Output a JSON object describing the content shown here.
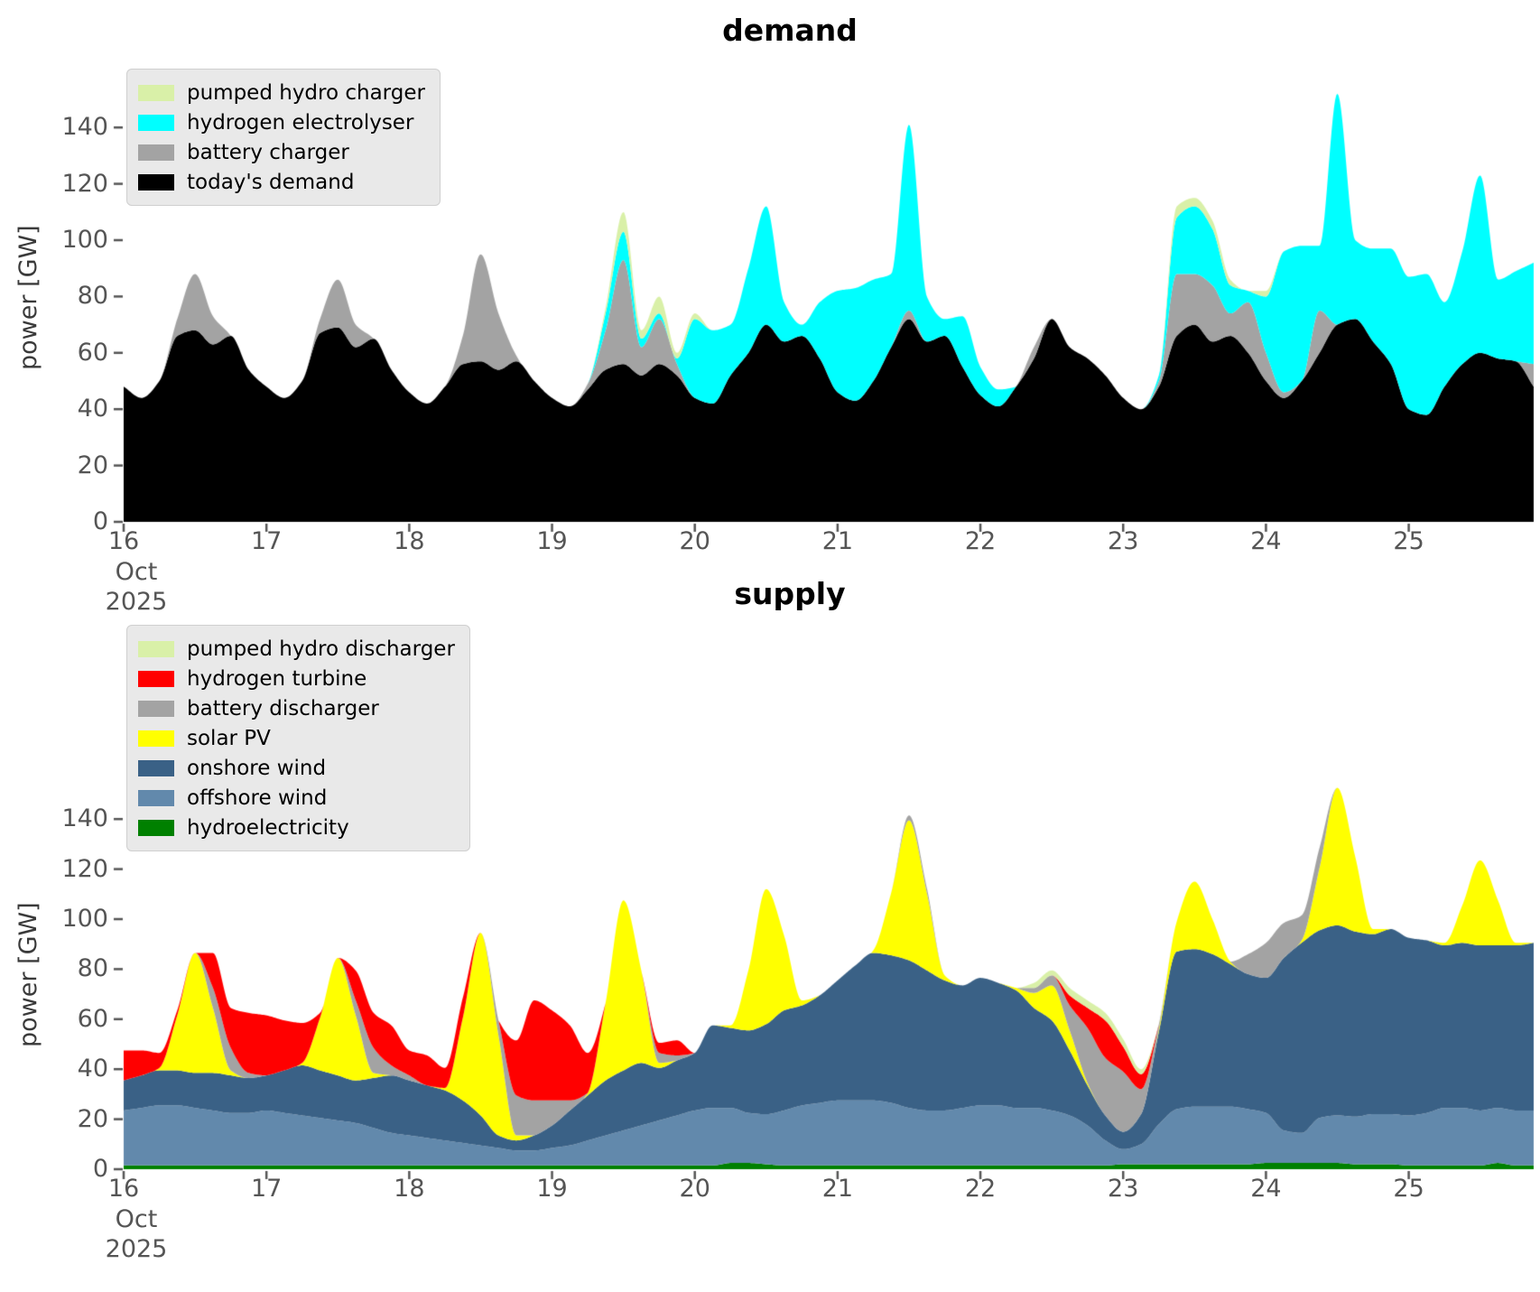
{
  "figure": {
    "month_year_sublabel": [
      "Oct",
      "2025"
    ]
  },
  "chart_data": [
    {
      "type": "area",
      "title": "demand",
      "ylabel": "power [GW]",
      "x_start": 16,
      "x_step": 0.125,
      "x_ticks": [
        16,
        17,
        18,
        19,
        20,
        21,
        22,
        23,
        24,
        25
      ],
      "x_tick_sublabels": [
        "Oct",
        "2025"
      ],
      "y_ticks": [
        0,
        20,
        40,
        60,
        80,
        100,
        120,
        140
      ],
      "ylim": [
        0,
        160
      ],
      "legend_position": "upper-left",
      "legend_note": "legend lists series top-of-stack first",
      "series": [
        {
          "name": "today's demand",
          "color": "#000000",
          "values": [
            48,
            44,
            50,
            66,
            68,
            63,
            66,
            54,
            48,
            44,
            50,
            67,
            69,
            62,
            65,
            54,
            46,
            42,
            48,
            56,
            57,
            54,
            57,
            50,
            44,
            41,
            47,
            54,
            56,
            52,
            56,
            52,
            44,
            42,
            52,
            60,
            70,
            64,
            66,
            58,
            46,
            43,
            50,
            62,
            72,
            64,
            66,
            55,
            45,
            41,
            48,
            58,
            72,
            62,
            58,
            52,
            44,
            40,
            48,
            66,
            70,
            64,
            66,
            60,
            50,
            44,
            50,
            60,
            70,
            72,
            64,
            56,
            40,
            38,
            48,
            56,
            60,
            58,
            57,
            48
          ]
        },
        {
          "name": "battery charger",
          "color": "#a3a3a3",
          "values": [
            0,
            0,
            0,
            6,
            20,
            10,
            0,
            0,
            0,
            0,
            0,
            5,
            17,
            8,
            0,
            0,
            0,
            0,
            0,
            10,
            38,
            20,
            2,
            0,
            0,
            0,
            2,
            14,
            37,
            10,
            16,
            4,
            0,
            0,
            0,
            0,
            0,
            0,
            0,
            0,
            0,
            0,
            0,
            0,
            3,
            0,
            0,
            0,
            0,
            0,
            0,
            4,
            0,
            0,
            0,
            0,
            0,
            0,
            2,
            22,
            18,
            20,
            8,
            18,
            10,
            2,
            0,
            15,
            0,
            0,
            0,
            0,
            0,
            0,
            0,
            0,
            0,
            0,
            0,
            8
          ]
        },
        {
          "name": "hydrogen electrolyser",
          "color": "#00ffff",
          "values": [
            0,
            0,
            0,
            0,
            0,
            0,
            0,
            0,
            0,
            0,
            0,
            0,
            0,
            0,
            0,
            0,
            0,
            0,
            0,
            0,
            0,
            0,
            0,
            0,
            0,
            0,
            0,
            6,
            10,
            3,
            2,
            2,
            28,
            26,
            18,
            30,
            42,
            14,
            4,
            20,
            36,
            40,
            36,
            26,
            66,
            16,
            6,
            18,
            10,
            6,
            0,
            0,
            0,
            0,
            0,
            0,
            0,
            0,
            2,
            20,
            24,
            20,
            10,
            4,
            20,
            50,
            48,
            23,
            82,
            28,
            33,
            41,
            47,
            50,
            30,
            40,
            63,
            28,
            32,
            36
          ]
        },
        {
          "name": "pumped hydro charger",
          "color": "#d9f0a8",
          "values": [
            0,
            0,
            0,
            0,
            0,
            0,
            0,
            0,
            0,
            0,
            0,
            0,
            0,
            0,
            0,
            0,
            0,
            0,
            0,
            0,
            0,
            0,
            0,
            0,
            0,
            0,
            0,
            2,
            7,
            3,
            6,
            2,
            2,
            0,
            0,
            0,
            0,
            0,
            0,
            0,
            0,
            0,
            0,
            0,
            0,
            0,
            0,
            0,
            0,
            0,
            0,
            0,
            0,
            0,
            0,
            0,
            0,
            0,
            0,
            4,
            3,
            3,
            2,
            0,
            2,
            0,
            0,
            0,
            0,
            0,
            0,
            0,
            0,
            0,
            0,
            0,
            0,
            0,
            0,
            0
          ]
        }
      ]
    },
    {
      "type": "area",
      "title": "supply",
      "ylabel": "power [GW]",
      "x_start": 16,
      "x_step": 0.125,
      "x_ticks": [
        16,
        17,
        18,
        19,
        20,
        21,
        22,
        23,
        24,
        25
      ],
      "x_tick_sublabels": [
        "Oct",
        "2025"
      ],
      "y_ticks": [
        0,
        20,
        40,
        60,
        80,
        100,
        120,
        140
      ],
      "ylim": [
        0,
        156
      ],
      "legend_position": "upper-left",
      "legend_note": "legend lists series top-of-stack first",
      "series": [
        {
          "name": "hydroelectricity",
          "color": "#008000",
          "values": [
            1.5,
            1.5,
            1.5,
            1.5,
            1.5,
            1.5,
            1.5,
            1.5,
            1.5,
            1.5,
            1.5,
            1.5,
            1.5,
            1.5,
            1.5,
            1.5,
            1.5,
            1.5,
            1.5,
            1.5,
            1.5,
            1.5,
            1.5,
            1.5,
            1.5,
            1.5,
            1.5,
            1.5,
            1.5,
            1.5,
            1.5,
            1.5,
            1.5,
            1.5,
            2.5,
            2.5,
            2,
            1.5,
            1.5,
            1.5,
            1.5,
            1.5,
            1.5,
            1.5,
            1.5,
            1.5,
            1.5,
            1.5,
            1.5,
            1.5,
            1.5,
            1.5,
            1.5,
            1.5,
            1.5,
            1.5,
            2,
            2,
            2,
            2,
            2,
            2,
            2,
            2,
            2.5,
            2.5,
            2.5,
            2.5,
            2.5,
            2,
            2,
            2,
            1.5,
            1.5,
            1.5,
            1.5,
            1.5,
            2.5,
            1.5,
            1.5
          ]
        },
        {
          "name": "offshore wind",
          "color": "#6289ac",
          "values": [
            22,
            23,
            24,
            24,
            23,
            22,
            21,
            21,
            22,
            21,
            20,
            19,
            18,
            17,
            15,
            13,
            12,
            11,
            10,
            9,
            8,
            7,
            6,
            6,
            7,
            8,
            10,
            12,
            14,
            16,
            18,
            20,
            22,
            23,
            22,
            20,
            20,
            22,
            24,
            25,
            26,
            26,
            26,
            25,
            23,
            22,
            22,
            23,
            24,
            24,
            23,
            23,
            22,
            20,
            16,
            10,
            6,
            8,
            16,
            22,
            23,
            23,
            23,
            22,
            20,
            13,
            12,
            18,
            19,
            19,
            20,
            20,
            20,
            21,
            23,
            23,
            22,
            22,
            22,
            22
          ]
        },
        {
          "name": "onshore wind",
          "color": "#3a6186",
          "values": [
            12,
            13,
            14,
            14,
            14,
            15,
            15,
            14,
            14,
            17,
            20,
            19,
            18,
            17,
            20,
            23,
            22,
            21,
            20,
            17,
            12,
            5,
            4,
            6,
            9,
            14,
            18,
            22,
            24,
            25,
            21,
            22,
            23,
            33,
            32,
            33,
            36,
            40,
            40,
            43,
            48,
            54,
            59,
            59,
            59,
            56,
            52,
            49,
            51,
            49,
            47,
            40,
            36,
            26,
            16,
            10,
            7,
            12,
            37,
            63,
            63,
            61,
            57,
            54,
            54,
            69,
            76,
            75,
            76,
            74,
            72,
            74,
            71,
            69,
            65,
            66,
            66,
            65,
            66,
            67
          ]
        },
        {
          "name": "solar PV",
          "color": "#ffff00",
          "values": [
            0,
            0,
            1,
            22,
            48,
            26,
            2,
            0,
            0,
            0,
            1,
            21,
            47,
            26,
            2,
            0,
            0,
            0,
            1,
            33,
            73,
            40,
            2,
            0,
            0,
            0,
            1,
            31,
            68,
            37,
            2,
            0,
            0,
            0,
            1,
            24,
            54,
            30,
            2,
            0,
            0,
            0,
            1,
            25,
            56,
            31,
            2,
            0,
            0,
            0,
            1,
            6,
            14,
            8,
            1,
            0,
            0,
            0,
            1,
            12,
            27,
            14,
            1,
            0,
            0,
            0,
            1,
            25,
            55,
            30,
            2,
            0,
            0,
            0,
            1,
            15,
            34,
            18,
            1,
            0
          ]
        },
        {
          "name": "battery discharger",
          "color": "#a3a3a3",
          "values": [
            0,
            0,
            0,
            0,
            0,
            8,
            9,
            2,
            0,
            0,
            0,
            0,
            0,
            6,
            10,
            4,
            2,
            0,
            0,
            0,
            0,
            6,
            16,
            14,
            10,
            4,
            0,
            0,
            0,
            0,
            4,
            2,
            0,
            0,
            0,
            0,
            0,
            0,
            0,
            0,
            0,
            0,
            0,
            0,
            2,
            2,
            0,
            0,
            0,
            0,
            0,
            2,
            4,
            10,
            22,
            23,
            24,
            10,
            2,
            0,
            0,
            0,
            0,
            8,
            14,
            14,
            10,
            8,
            0,
            0,
            0,
            0,
            0,
            0,
            0,
            0,
            0,
            0,
            0,
            0
          ]
        },
        {
          "name": "hydrogen turbine",
          "color": "#ff0000",
          "values": [
            12,
            10,
            6,
            2,
            0,
            14,
            16,
            24,
            24,
            20,
            16,
            2,
            0,
            12,
            14,
            16,
            10,
            12,
            8,
            8,
            0,
            0,
            22,
            40,
            36,
            30,
            16,
            0,
            0,
            0,
            4,
            6,
            0,
            0,
            0,
            0,
            0,
            0,
            0,
            0,
            0,
            0,
            0,
            0,
            0,
            0,
            0,
            0,
            0,
            0,
            0,
            0,
            0,
            4,
            8,
            15,
            10,
            6,
            0,
            0,
            0,
            0,
            0,
            0,
            0,
            0,
            0,
            0,
            0,
            0,
            0,
            0,
            0,
            0,
            0,
            0,
            0,
            0,
            0,
            0
          ]
        },
        {
          "name": "pumped hydro discharger",
          "color": "#d9f0a8",
          "values": [
            0,
            0,
            0,
            0,
            0,
            0,
            0,
            0,
            0,
            0,
            0,
            0,
            0,
            0,
            0,
            0,
            0,
            0,
            0,
            0,
            0,
            0,
            0,
            0,
            0,
            0,
            0,
            0,
            0,
            0,
            0,
            0,
            0,
            0,
            0,
            0,
            0,
            0,
            0,
            0,
            0,
            0,
            0,
            0,
            0,
            0,
            0,
            0,
            0,
            0,
            0,
            2,
            2,
            3,
            3,
            3,
            3,
            2,
            0,
            0,
            0,
            0,
            0,
            0,
            0,
            0,
            0,
            0,
            0,
            0,
            0,
            0,
            0,
            0,
            0,
            0,
            0,
            0,
            0,
            0
          ]
        }
      ]
    }
  ]
}
